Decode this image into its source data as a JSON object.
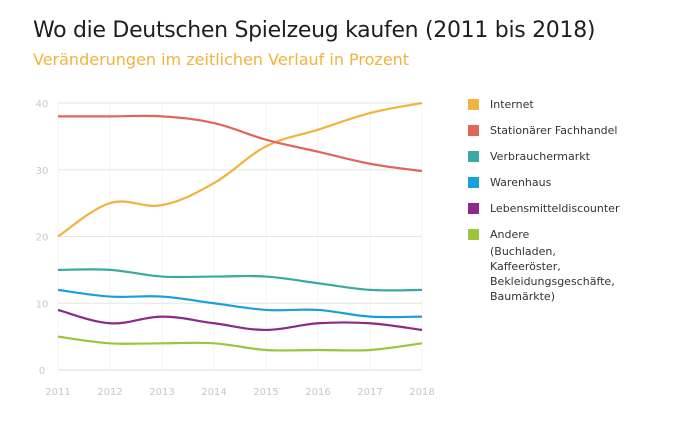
{
  "chart_data": {
    "type": "line",
    "title": "Wo die Deutschen Spielzeug kaufen (2011 bis 2018)",
    "subtitle": "Veränderungen im zeitlichen Verlauf in Prozent",
    "x": [
      "2011",
      "2012",
      "2013",
      "2014",
      "2015",
      "2016",
      "2017",
      "2018"
    ],
    "ylim": [
      0,
      40
    ],
    "yticks": [
      0,
      10,
      20,
      30,
      40
    ],
    "grid": true,
    "legend_position": "right",
    "series": [
      {
        "name": "Internet",
        "color": "#f0b43c",
        "values": [
          20,
          25,
          24.7,
          28,
          33.5,
          36,
          38.5,
          40
        ]
      },
      {
        "name": "Stationärer Fachhandel",
        "color": "#e0655a",
        "values": [
          38,
          38,
          38,
          37,
          34.5,
          32.7,
          30.9,
          29.8
        ]
      },
      {
        "name": "Verbrauchermarkt",
        "color": "#3aa9a1",
        "values": [
          15,
          15,
          14,
          14,
          14,
          13,
          12,
          12
        ]
      },
      {
        "name": "Warenhaus",
        "color": "#1aa0d8",
        "values": [
          12,
          11,
          11,
          10,
          9,
          9,
          8,
          8
        ]
      },
      {
        "name": "Lebensmitteldiscounter",
        "color": "#8b2a8b",
        "values": [
          9,
          7,
          8,
          7,
          6,
          7,
          7,
          6
        ]
      },
      {
        "name": "Andere",
        "color": "#9bc53d",
        "values": [
          5,
          4,
          4,
          4,
          3,
          3,
          3,
          4
        ]
      }
    ],
    "legend_note": "(Buchladen, Kaffeeröster, Bekleidungsgeschäfte, Baumärkte)"
  }
}
